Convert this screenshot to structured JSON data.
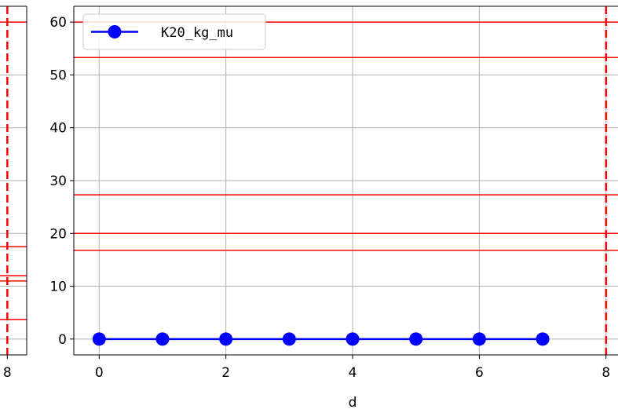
{
  "chart_data": [
    {
      "type": "line",
      "panel": "left-partial",
      "x_tick_labels": [
        "8"
      ],
      "xlim": [
        7.2,
        8.4
      ],
      "ylim": [
        -3,
        63
      ],
      "hlines": [
        3.7,
        11.0,
        12.0,
        17.5,
        60
      ],
      "vlines": [
        8
      ],
      "grid": true
    },
    {
      "type": "line",
      "panel": "main",
      "xlabel": "d",
      "ylabel": "",
      "xlim": [
        -0.4,
        8.35
      ],
      "ylim": [
        -3,
        63
      ],
      "x_ticks": [
        0,
        2,
        4,
        6,
        8
      ],
      "x_tick_labels": [
        "0",
        "2",
        "4",
        "6",
        "8"
      ],
      "y_ticks": [
        0,
        10,
        20,
        30,
        40,
        50,
        60
      ],
      "y_tick_labels": [
        "0",
        "10",
        "20",
        "30",
        "40",
        "50",
        "60"
      ],
      "grid": true,
      "legend": {
        "placement": "top-left"
      },
      "series": [
        {
          "name": "K20_kg_mu",
          "color": "#0000ff",
          "marker": "circle",
          "x": [
            0,
            1,
            2,
            3,
            4,
            5,
            6,
            7
          ],
          "y": [
            0,
            0,
            0,
            0,
            0,
            0,
            0,
            0
          ]
        }
      ],
      "hlines": [
        16.8,
        20,
        27.3,
        53.3,
        60
      ],
      "hline_color": "#ff0000",
      "vlines": [
        8
      ],
      "vline_color": "#ff0000",
      "vline_style": "dashed"
    }
  ]
}
